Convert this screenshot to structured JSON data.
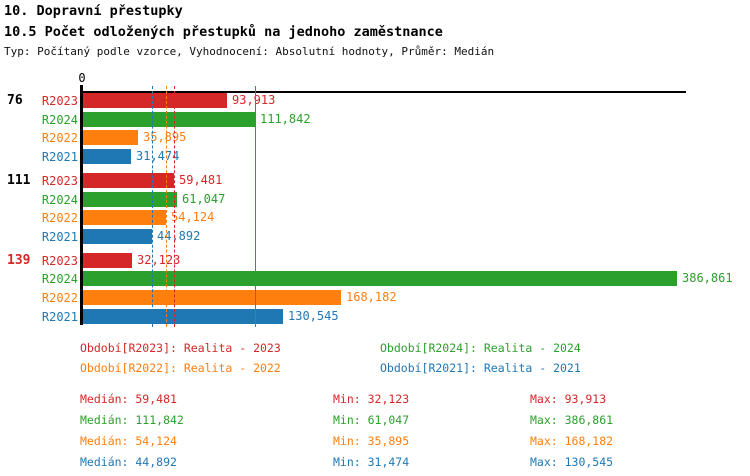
{
  "header": {
    "title": "10. Dopravní přestupky",
    "subtitle": "10.5 Počet odložených přestupků na jednoho zaměstnance",
    "meta": "Typ: Počítaný podle vzorce, Vyhodnocení: Absolutní hodnoty, Průměr: Medián"
  },
  "colors": {
    "R2023": "#d62728",
    "R2024": "#2ca02c",
    "R2022": "#ff7f0e",
    "R2021": "#1f77b4",
    "axis": "#000000",
    "highlight_group_label": "#d62728",
    "normal_group_label": "#000000"
  },
  "chart_data": {
    "type": "bar",
    "orientation": "horizontal",
    "title": "10.5 Počet odložených přestupků na jednoho zaměstnance",
    "axis_origin_label": "0",
    "xlim": [
      0,
      395000
    ],
    "grid": false,
    "series_order": [
      "R2023",
      "R2024",
      "R2022",
      "R2021"
    ],
    "groups": [
      {
        "label": "76",
        "label_color": "#000000",
        "bars": [
          {
            "series": "R2023",
            "value": 93913,
            "label": "93,913"
          },
          {
            "series": "R2024",
            "value": 111842,
            "label": "111,842"
          },
          {
            "series": "R2022",
            "value": 35895,
            "label": "35,895"
          },
          {
            "series": "R2021",
            "value": 31474,
            "label": "31,474"
          }
        ]
      },
      {
        "label": "111",
        "label_color": "#000000",
        "bars": [
          {
            "series": "R2023",
            "value": 59481,
            "label": "59,481"
          },
          {
            "series": "R2024",
            "value": 61047,
            "label": "61,047"
          },
          {
            "series": "R2022",
            "value": 54124,
            "label": "54,124"
          },
          {
            "series": "R2021",
            "value": 44892,
            "label": "44,892"
          }
        ]
      },
      {
        "label": "139",
        "label_color": "#d62728",
        "bars": [
          {
            "series": "R2023",
            "value": 32123,
            "label": "32,123"
          },
          {
            "series": "R2024",
            "value": 386861,
            "label": "386,861"
          },
          {
            "series": "R2022",
            "value": 168182,
            "label": "168,182"
          },
          {
            "series": "R2021",
            "value": 130545,
            "label": "130,545"
          }
        ]
      }
    ],
    "median_lines": [
      {
        "series": "R2021",
        "value": 44892,
        "style": "dashed",
        "color": "#1f77b4"
      },
      {
        "series": "R2022",
        "value": 54124,
        "style": "dashed",
        "color": "#ff7f0e"
      },
      {
        "series": "R2023",
        "value": 59481,
        "style": "dashed",
        "color": "#d62728"
      },
      {
        "series": "R2024",
        "value": 111842,
        "style": "solid",
        "color": "#2ca02c"
      }
    ]
  },
  "legend": {
    "items": [
      {
        "label": "Období[R2023]: Realita - 2023",
        "color": "#d62728"
      },
      {
        "label": "Období[R2024]: Realita - 2024",
        "color": "#2ca02c"
      },
      {
        "label": "Období[R2022]: Realita - 2022",
        "color": "#ff7f0e"
      },
      {
        "label": "Období[R2021]: Realita - 2021",
        "color": "#1f77b4"
      }
    ]
  },
  "stats": {
    "labels": {
      "median": "Medián:",
      "min": "Min:",
      "max": "Max:"
    },
    "rows": [
      {
        "series": "R2023",
        "color": "#d62728",
        "median": "59,481",
        "min": "32,123",
        "max": "93,913"
      },
      {
        "series": "R2024",
        "color": "#2ca02c",
        "median": "111,842",
        "min": "61,047",
        "max": "386,861"
      },
      {
        "series": "R2022",
        "color": "#ff7f0e",
        "median": "54,124",
        "min": "35,895",
        "max": "168,182"
      },
      {
        "series": "R2021",
        "color": "#1f77b4",
        "median": "44,892",
        "min": "31,474",
        "max": "130,545"
      }
    ]
  }
}
